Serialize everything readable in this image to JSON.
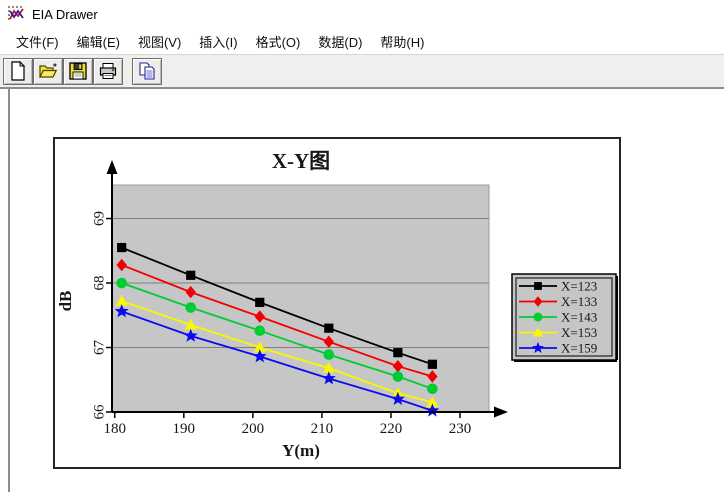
{
  "window": {
    "title": "EIA Drawer"
  },
  "menu": {
    "items": [
      "文件(F)",
      "编辑(E)",
      "视图(V)",
      "插入(I)",
      "格式(O)",
      "数据(D)",
      "帮助(H)"
    ]
  },
  "toolbar": {
    "buttons": [
      {
        "icon": "new-document-icon"
      },
      {
        "icon": "open-folder-icon"
      },
      {
        "icon": "save-icon"
      },
      {
        "icon": "print-icon"
      },
      {
        "icon": "copy-icon"
      }
    ]
  },
  "chart_data": {
    "type": "line",
    "title": "X-Y图",
    "xlabel": "Y(m)",
    "ylabel": "dB",
    "x": [
      181,
      191,
      201,
      211,
      221,
      226
    ],
    "series": [
      {
        "name": "X=123",
        "color": "#000000",
        "marker": "square",
        "values": [
          68.55,
          68.12,
          67.7,
          67.3,
          66.92,
          66.74
        ]
      },
      {
        "name": "X=133",
        "color": "#f00000",
        "marker": "diamond",
        "values": [
          68.28,
          67.86,
          67.48,
          67.09,
          66.71,
          66.55
        ]
      },
      {
        "name": "X=143",
        "color": "#00cc33",
        "marker": "circle",
        "values": [
          68.0,
          67.62,
          67.26,
          66.89,
          66.55,
          66.36
        ]
      },
      {
        "name": "X=153",
        "color": "#f8f800",
        "marker": "triangle",
        "values": [
          67.72,
          67.35,
          67.0,
          66.68,
          66.29,
          66.15
        ]
      },
      {
        "name": "X=159",
        "color": "#0a0af0",
        "marker": "star",
        "values": [
          67.56,
          67.18,
          66.86,
          66.52,
          66.2,
          66.02
        ]
      }
    ],
    "xticks": [
      180,
      190,
      200,
      210,
      220,
      230
    ],
    "yticks": [
      66,
      67,
      68,
      69
    ],
    "xlim": [
      179.6,
      234.2
    ],
    "ylim": [
      66,
      69.52
    ],
    "grid": "horizontal",
    "grid_color": "#808080",
    "plot_bg": "#c6c6c6",
    "legend_position": "right",
    "legend_bg": "#c6c6c6"
  }
}
